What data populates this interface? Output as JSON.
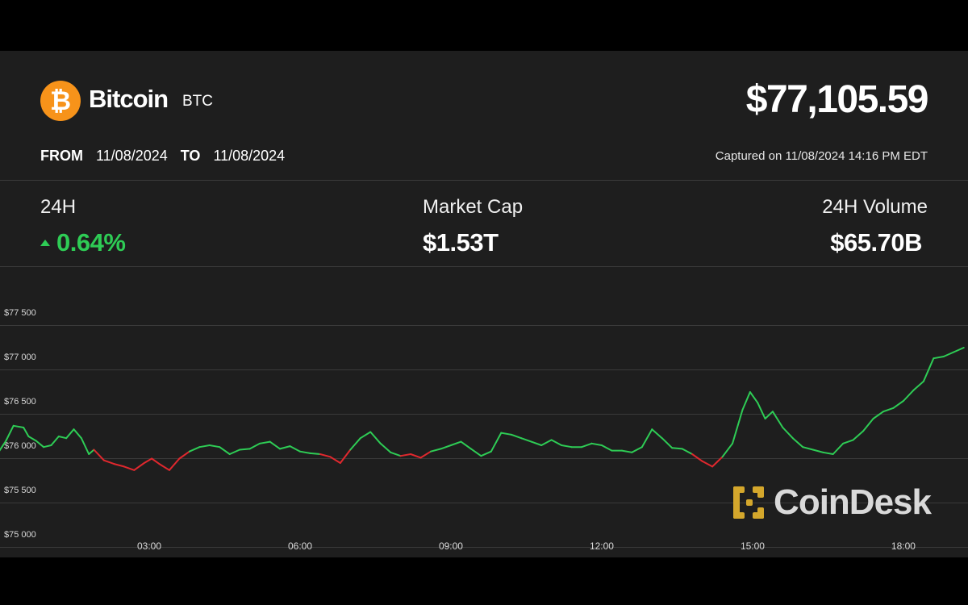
{
  "header": {
    "coin_name": "Bitcoin",
    "ticker": "BTC",
    "logo_symbol": "₿",
    "price": "$77,105.59",
    "from_label": "FROM",
    "from_date": "11/08/2024",
    "to_label": "TO",
    "to_date": "11/08/2024",
    "captured": "Captured on 11/08/2024 14:16 PM EDT"
  },
  "stats": {
    "change_label": "24H",
    "change_value": "0.64%",
    "mcap_label": "Market Cap",
    "mcap_value": "$1.53T",
    "volume_label": "24H Volume",
    "volume_value": "$65.70B"
  },
  "watermark": {
    "text": "CoinDesk",
    "color": "#d4a72c"
  },
  "colors": {
    "up": "#2ecc55",
    "down": "#e0282e",
    "brand": "#f7931a"
  },
  "chart_data": {
    "type": "line",
    "title": "",
    "xlabel": "",
    "ylabel": "",
    "ylim": [
      74900,
      77800
    ],
    "xlim": [
      0,
      19.2
    ],
    "y_ticks": [
      77500,
      77000,
      76500,
      76000,
      75500,
      75000
    ],
    "y_tick_labels": [
      "$77 500",
      "$77 000",
      "$76 500",
      "$76 000",
      "$75 500",
      "$75 000"
    ],
    "x_ticks": [
      3,
      6,
      9,
      12,
      15,
      18
    ],
    "x_tick_labels": [
      "03:00",
      "06:00",
      "09:00",
      "12:00",
      "15:00",
      "18:00"
    ],
    "baseline": 75900,
    "grid": true,
    "series": [
      {
        "x": [
          0.0,
          0.15,
          0.3,
          0.5,
          0.6,
          0.75,
          0.9,
          1.05,
          1.2,
          1.35,
          1.5,
          1.65,
          1.8,
          1.9,
          2.1,
          2.3,
          2.5,
          2.7,
          2.9,
          3.05,
          3.2,
          3.4,
          3.6,
          3.8,
          4.0,
          4.2,
          4.4,
          4.6,
          4.8,
          5.0,
          5.2,
          5.4,
          5.6,
          5.8,
          6.0,
          6.2,
          6.4,
          6.6,
          6.8,
          7.0,
          7.2,
          7.4,
          7.6,
          7.8,
          8.0,
          8.2,
          8.4,
          8.6,
          8.8,
          9.0,
          9.2,
          9.4,
          9.6,
          9.8,
          10.0,
          10.2,
          10.4,
          10.6,
          10.8,
          11.0,
          11.2,
          11.4,
          11.6,
          11.8,
          12.0,
          12.2,
          12.4,
          12.6,
          12.8,
          13.0,
          13.2,
          13.4,
          13.6,
          13.8,
          14.0,
          14.2,
          14.4,
          14.6,
          14.8,
          14.95,
          15.1,
          15.25,
          15.4,
          15.6,
          15.8,
          16.0,
          16.2,
          16.4,
          16.6,
          16.8,
          17.0,
          17.2,
          17.4,
          17.6,
          17.8,
          18.0,
          18.2,
          18.4,
          18.6,
          18.8,
          19.0,
          19.2
        ],
        "y": [
          75920,
          76050,
          76220,
          76200,
          76100,
          76050,
          75980,
          76000,
          76100,
          76080,
          76180,
          76080,
          75900,
          75950,
          75830,
          75790,
          75760,
          75720,
          75800,
          75850,
          75790,
          75720,
          75850,
          75930,
          75980,
          76000,
          75980,
          75900,
          75950,
          75960,
          76020,
          76040,
          75960,
          75990,
          75930,
          75910,
          75900,
          75870,
          75800,
          75950,
          76080,
          76150,
          76020,
          75920,
          75880,
          75900,
          75860,
          75930,
          75960,
          76000,
          76040,
          75960,
          75880,
          75930,
          76140,
          76120,
          76080,
          76040,
          76000,
          76060,
          76000,
          75980,
          75980,
          76020,
          76000,
          75940,
          75940,
          75920,
          75980,
          76180,
          76080,
          75970,
          75960,
          75900,
          75820,
          75760,
          75870,
          76020,
          76400,
          76600,
          76480,
          76300,
          76380,
          76200,
          76080,
          75980,
          75950,
          75920,
          75900,
          76020,
          76060,
          76160,
          76300,
          76380,
          76420,
          76500,
          76620,
          76720,
          76980,
          77000,
          77050,
          77100
        ]
      }
    ]
  }
}
